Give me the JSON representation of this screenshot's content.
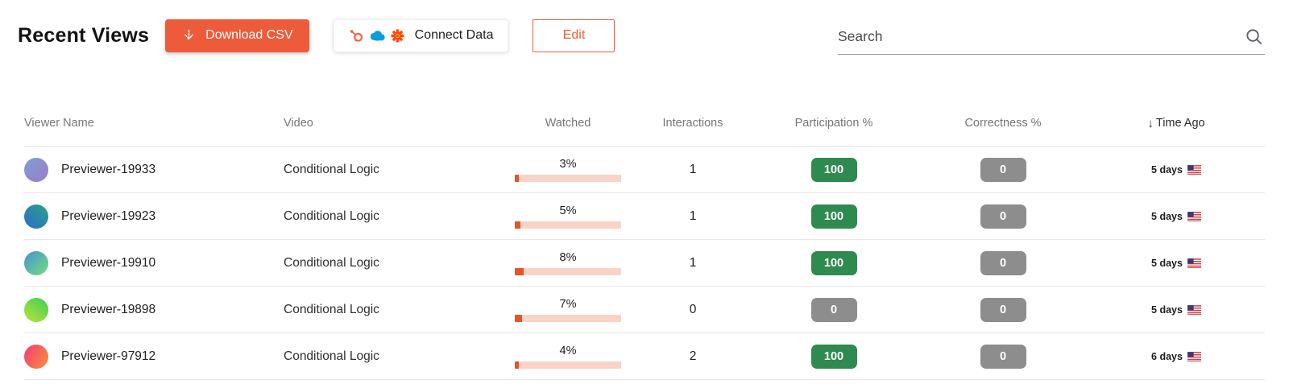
{
  "header": {
    "title": "Recent Views",
    "download_label": "Download CSV",
    "connect_label": "Connect Data",
    "edit_label": "Edit",
    "search_placeholder": "Search"
  },
  "colors": {
    "accent_orange": "#ee5b3a",
    "badge_green": "#2f8a4f",
    "badge_gray": "#8d8d8d",
    "bar_fill": "#e6542c",
    "bar_track": "#fad3c7",
    "hubspot_orange": "#f06a45",
    "salesforce_blue": "#0d9dda",
    "zapier_orange": "#ff4a00"
  },
  "icons": [
    "download-arrow-icon",
    "hubspot-icon",
    "salesforce-icon",
    "zapier-icon",
    "search-icon",
    "sort-descending-icon",
    "us-flag-icon"
  ],
  "table": {
    "columns": [
      "Viewer Name",
      "Video",
      "Watched",
      "Interactions",
      "Participation %",
      "Correctness %",
      "Time Ago"
    ],
    "sort": {
      "column": "Time Ago",
      "direction": "descending",
      "arrow": "↓"
    },
    "rows": [
      {
        "name": "Previewer-19933",
        "video": "Conditional Logic",
        "watched_label": "3%",
        "watched_pct": 3,
        "interactions": "1",
        "participation": "100",
        "participation_color": "green",
        "correctness": "0",
        "correctness_color": "gray",
        "time_ago": "5 days",
        "avatar": {
          "angle": 140,
          "from": "#7d9fd4",
          "to": "#9c7cc9"
        }
      },
      {
        "name": "Previewer-19923",
        "video": "Conditional Logic",
        "watched_label": "5%",
        "watched_pct": 5,
        "interactions": "1",
        "participation": "100",
        "participation_color": "green",
        "correctness": "0",
        "correctness_color": "gray",
        "time_ago": "5 days",
        "avatar": {
          "angle": 225,
          "from": "#27a487",
          "to": "#2d6bcd"
        }
      },
      {
        "name": "Previewer-19910",
        "video": "Conditional Logic",
        "watched_label": "8%",
        "watched_pct": 8,
        "interactions": "1",
        "participation": "100",
        "participation_color": "green",
        "correctness": "0",
        "correctness_color": "gray",
        "time_ago": "5 days",
        "avatar": {
          "angle": 135,
          "from": "#4a91d6",
          "to": "#70e07c"
        }
      },
      {
        "name": "Previewer-19898",
        "video": "Conditional Logic",
        "watched_label": "7%",
        "watched_pct": 7,
        "interactions": "0",
        "participation": "0",
        "participation_color": "gray",
        "correctness": "0",
        "correctness_color": "gray",
        "time_ago": "5 days",
        "avatar": {
          "angle": 215,
          "from": "#3ed051",
          "to": "#b9e23e"
        }
      },
      {
        "name": "Previewer-97912",
        "video": "Conditional Logic",
        "watched_label": "4%",
        "watched_pct": 4,
        "interactions": "2",
        "participation": "100",
        "participation_color": "green",
        "correctness": "0",
        "correctness_color": "gray",
        "time_ago": "6 days",
        "avatar": {
          "angle": 120,
          "from": "#f43b78",
          "to": "#f99136"
        }
      }
    ]
  }
}
